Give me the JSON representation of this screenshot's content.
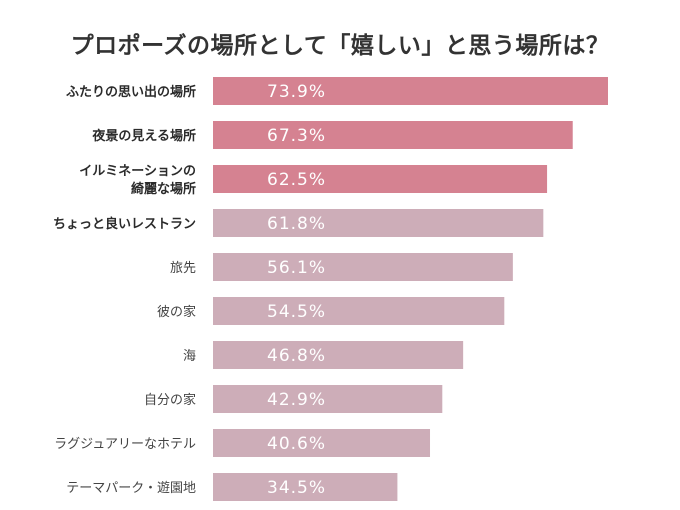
{
  "chart_data": {
    "type": "bar",
    "orientation": "horizontal",
    "title": "プロポーズの場所として「嬉しい」と思う場所は？",
    "xlabel": "",
    "ylabel": "",
    "xlim": [
      0,
      100
    ],
    "grid": false,
    "value_suffix": "%",
    "categories": [
      "ふたりの思い出の場所",
      "夜景の見える場所",
      "イルミネーションの綺麗な場所",
      "ちょっと良いレストラン",
      "旅先",
      "彼の家",
      "海",
      "自分の家",
      "ラグジュアリーなホテル",
      "テーマパーク・遊園地"
    ],
    "category_lines": [
      [
        "ふたりの思い出の場所"
      ],
      [
        "夜景の見える場所"
      ],
      [
        "イルミネーションの",
        "綺麗な場所"
      ],
      [
        "ちょっと良いレストラン"
      ],
      [
        "旅先"
      ],
      [
        "彼の家"
      ],
      [
        "海"
      ],
      [
        "自分の家"
      ],
      [
        "ラグジュアリーなホテル"
      ],
      [
        "テーマパーク・遊園地"
      ]
    ],
    "values": [
      73.9,
      67.3,
      62.5,
      61.8,
      56.1,
      54.5,
      46.8,
      42.9,
      40.6,
      34.5
    ],
    "highlighted": [
      true,
      true,
      true,
      false,
      false,
      false,
      false,
      false,
      false,
      false
    ],
    "bold_labels": [
      true,
      true,
      true,
      true,
      false,
      false,
      false,
      false,
      false,
      false
    ],
    "colors": {
      "highlight": "#d58291",
      "normal": "#cdadb8",
      "value_text": "#ffffff",
      "label_bold": "#2b2b2b",
      "label_normal": "#444444",
      "title": "#333333"
    }
  }
}
